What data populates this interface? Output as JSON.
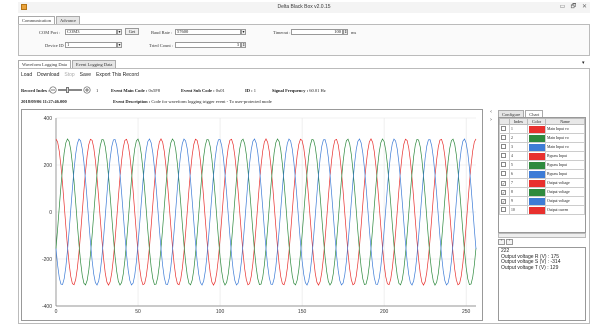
{
  "window": {
    "title": "Delta Black Box v2.0.15",
    "minimize": "▭",
    "restore": "🗗",
    "close": "✕"
  },
  "top_tabs": [
    {
      "label": "Communication"
    },
    {
      "label": "Advance"
    }
  ],
  "comm": {
    "com_port_label": "COM Port :",
    "com_port_value": "COM3",
    "get_label": "Get",
    "baud_label": "Baud Rate :",
    "baud_value": "57600",
    "timeout_label": "Timeout :",
    "timeout_value": "100",
    "timeout_unit": "ms",
    "device_label": "Device ID :",
    "device_value": "1",
    "tried_label": "Tried Count :",
    "tried_value": "3"
  },
  "log_tabs": [
    {
      "label": "Waveform Logging Data"
    },
    {
      "label": "Event Logging Data"
    }
  ],
  "toolbar": {
    "load": "Load",
    "download": "Download",
    "stop": "Stop",
    "save": "Save",
    "export": "Export This Record"
  },
  "record": {
    "index_label": "Record Index :",
    "index_value": "1",
    "main_code_label": "Event Main Code :",
    "main_code_value": "0x5F8",
    "sub_code_label": "Event Sub Code :",
    "sub_code_value": "0x01",
    "id_label": "ID :",
    "id_value": "1",
    "freq_label": "Signal Frequency :",
    "freq_value": "60.01 Hz",
    "timestamp": "2018/09/06 11:27:46.000",
    "desc_label": "Event Description :",
    "desc_value": "Code for waveform logging trigger event - To user-protected mode"
  },
  "right_tabs": [
    {
      "label": "Configure"
    },
    {
      "label": "Chart"
    }
  ],
  "channels": {
    "headers": [
      "Index",
      "Color",
      "Name"
    ],
    "rows": [
      {
        "checked": false,
        "index": "1",
        "color": "#e8302e",
        "name": "Main Input vo"
      },
      {
        "checked": false,
        "index": "2",
        "color": "#2e8a3e",
        "name": "Main Input vo"
      },
      {
        "checked": false,
        "index": "3",
        "color": "#3e7cd6",
        "name": "Main Input vo"
      },
      {
        "checked": false,
        "index": "4",
        "color": "#e8302e",
        "name": "Bypass Input"
      },
      {
        "checked": false,
        "index": "5",
        "color": "#2e8a3e",
        "name": "Bypass Input"
      },
      {
        "checked": false,
        "index": "6",
        "color": "#3e7cd6",
        "name": "Bypass Input"
      },
      {
        "checked": true,
        "index": "7",
        "color": "#e8302e",
        "name": "Output voltage"
      },
      {
        "checked": true,
        "index": "8",
        "color": "#2e8a3e",
        "name": "Output voltage"
      },
      {
        "checked": true,
        "index": "9",
        "color": "#3e7cd6",
        "name": "Output voltage"
      },
      {
        "checked": false,
        "index": "10",
        "color": "#e8302e",
        "name": "Output curren"
      }
    ]
  },
  "readout": {
    "index": "222",
    "lines": [
      "Output voltage R (V) : 175",
      "Output voltage S (V) : -314",
      "Output voltage T (V) : 129"
    ]
  },
  "chart_data": {
    "type": "line",
    "title": "",
    "xlabel": "",
    "ylabel": "",
    "xlim": [
      0,
      256
    ],
    "ylim": [
      -400,
      400
    ],
    "xticks": [
      0,
      50,
      100,
      150,
      200,
      250
    ],
    "yticks": [
      400,
      200,
      0,
      -200,
      -400
    ],
    "samples_per_cycle": 21.33,
    "amplitude": 311,
    "series": [
      {
        "color": "#e8302e",
        "phase_deg": 90
      },
      {
        "color": "#2e8a3e",
        "phase_deg": -30
      },
      {
        "color": "#3e7cd6",
        "phase_deg": -150
      }
    ],
    "grid": true
  }
}
